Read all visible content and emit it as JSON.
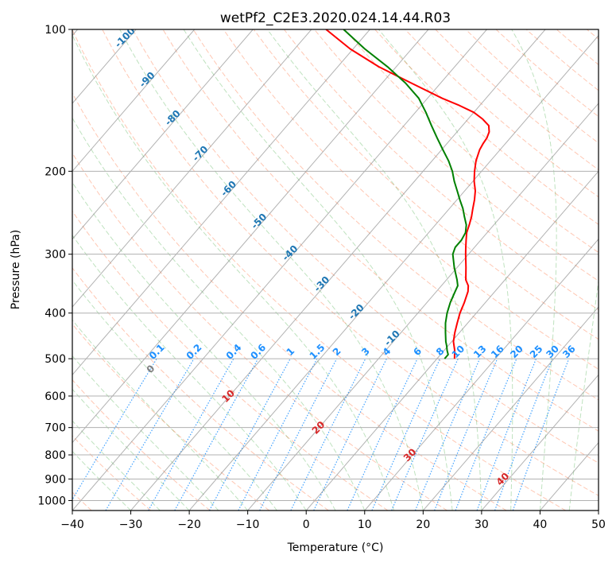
{
  "chart_data": {
    "type": "line",
    "subtype": "skew-t log-p diagram",
    "title": "wetPf2_C2E3.2020.024.14.44.R03",
    "xlabel": "Temperature (°C)",
    "ylabel": "Pressure (hPa)",
    "xlim": [
      -40,
      50
    ],
    "ylim": [
      1050,
      100
    ],
    "x_ticks": [
      -40,
      -30,
      -20,
      -10,
      0,
      10,
      20,
      30,
      40,
      50
    ],
    "y_ticks": [
      100,
      200,
      300,
      400,
      500,
      600,
      700,
      800,
      900,
      1000
    ],
    "isotherm_labels": [
      -100,
      -90,
      -80,
      -70,
      -60,
      -50,
      -40,
      -30,
      -20,
      -10
    ],
    "mixing_ratio_labels": [
      "0.1",
      "0.2",
      "0.4",
      "0.6",
      "1",
      "1.5",
      "2",
      "3",
      "4",
      "6",
      "8",
      "10",
      "13",
      "16",
      "20",
      "25",
      "30",
      "36"
    ],
    "mixing_ratio_values": [
      0.1,
      0.2,
      0.4,
      0.6,
      1,
      1.5,
      2,
      3,
      4,
      6,
      8,
      10,
      13,
      16,
      20,
      25,
      30,
      36
    ],
    "temperature_labels_red": [
      "10",
      "20",
      "30",
      "40"
    ],
    "temperature_label_gray": "0",
    "series": [
      {
        "name": "Temperature",
        "color": "#ff0000",
        "points": [
          [
            500,
            3.0
          ],
          [
            480,
            1.8
          ],
          [
            460,
            0.3
          ],
          [
            440,
            -0.8
          ],
          [
            420,
            -1.8
          ],
          [
            400,
            -2.8
          ],
          [
            380,
            -3.6
          ],
          [
            360,
            -4.6
          ],
          [
            350,
            -5.4
          ],
          [
            340,
            -6.7
          ],
          [
            320,
            -8.5
          ],
          [
            300,
            -10.5
          ],
          [
            290,
            -11.5
          ],
          [
            280,
            -12.5
          ],
          [
            270,
            -13.5
          ],
          [
            260,
            -14.2
          ],
          [
            250,
            -15.0
          ],
          [
            240,
            -16.0
          ],
          [
            230,
            -17.0
          ],
          [
            220,
            -18.2
          ],
          [
            210,
            -19.8
          ],
          [
            200,
            -21.2
          ],
          [
            190,
            -22.5
          ],
          [
            180,
            -23.5
          ],
          [
            175,
            -23.8
          ],
          [
            170,
            -24.0
          ],
          [
            165,
            -24.5
          ],
          [
            160,
            -25.5
          ],
          [
            155,
            -27.5
          ],
          [
            150,
            -30.0
          ],
          [
            145,
            -33.5
          ],
          [
            140,
            -37.5
          ],
          [
            130,
            -45.0
          ],
          [
            120,
            -53.0
          ],
          [
            110,
            -60.5
          ],
          [
            100,
            -67.5
          ]
        ]
      },
      {
        "name": "Dewpoint",
        "color": "#008000",
        "points": [
          [
            500,
            1.3
          ],
          [
            490,
            1.3
          ],
          [
            480,
            0.5
          ],
          [
            470,
            -0.2
          ],
          [
            460,
            -1.0
          ],
          [
            440,
            -2.4
          ],
          [
            420,
            -3.8
          ],
          [
            400,
            -5.0
          ],
          [
            380,
            -6.0
          ],
          [
            360,
            -6.8
          ],
          [
            350,
            -7.2
          ],
          [
            340,
            -8.2
          ],
          [
            320,
            -10.5
          ],
          [
            300,
            -12.7
          ],
          [
            290,
            -13.3
          ],
          [
            280,
            -13.3
          ],
          [
            270,
            -13.7
          ],
          [
            260,
            -14.7
          ],
          [
            250,
            -16.2
          ],
          [
            240,
            -17.7
          ],
          [
            230,
            -19.5
          ],
          [
            220,
            -21.3
          ],
          [
            210,
            -23.2
          ],
          [
            200,
            -25.0
          ],
          [
            190,
            -27.2
          ],
          [
            180,
            -29.8
          ],
          [
            170,
            -32.5
          ],
          [
            160,
            -35.3
          ],
          [
            150,
            -38.2
          ],
          [
            140,
            -41.5
          ],
          [
            130,
            -46.0
          ],
          [
            120,
            -51.5
          ],
          [
            110,
            -58.0
          ],
          [
            100,
            -64.5
          ]
        ]
      }
    ]
  }
}
